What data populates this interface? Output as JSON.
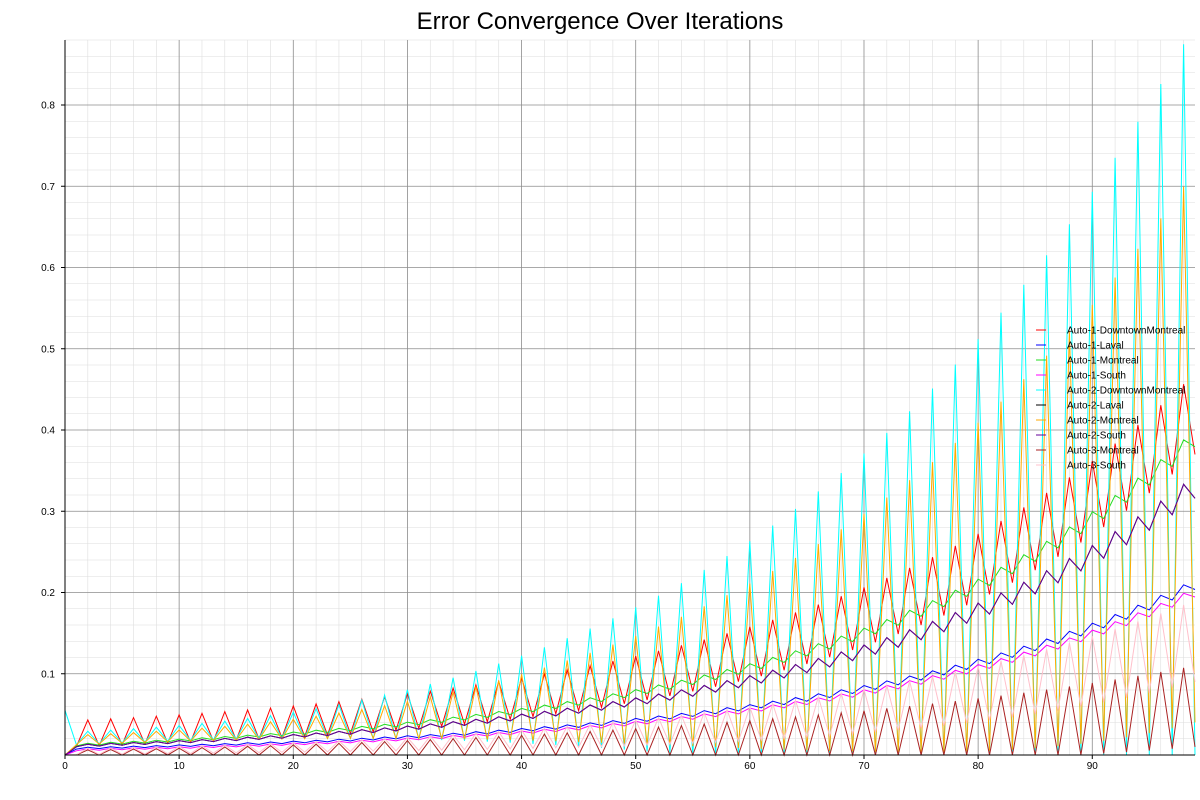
{
  "chart_data": {
    "type": "line",
    "title": "Error Convergence Over Iterations",
    "xlabel": "",
    "ylabel": "",
    "xlim": [
      0,
      99
    ],
    "ylim": [
      0,
      0.88
    ],
    "xticks": [
      0,
      10,
      20,
      30,
      40,
      50,
      60,
      70,
      80,
      90
    ],
    "yticks": [
      0.1,
      0.2,
      0.3,
      0.4,
      0.5,
      0.6,
      0.7,
      0.8
    ],
    "grid": true,
    "legend_position": "right",
    "series": [
      {
        "name": "Auto-1-DowntownMontreal",
        "color": "#ff0000",
        "params": {
          "mode": "zigzag",
          "start": 0.0,
          "a": 0.026,
          "s": 0.03,
          "e": 0.42,
          "ampStart": 0.016,
          "ampEnd": 0.05,
          "ampPow": 1.5
        }
      },
      {
        "name": "Auto-1-Laval",
        "color": "#0000ff",
        "params": {
          "mode": "smooth",
          "start": 0.0,
          "a": 0.008,
          "s": 0.015,
          "e": 0.21,
          "ampStart": 0.003,
          "ampEnd": 0.018,
          "ampPow": 2
        }
      },
      {
        "name": "Auto-1-Montreal",
        "color": "#22dd22",
        "params": {
          "mode": "smooth",
          "start": 0.0,
          "a": 0.012,
          "s": 0.02,
          "e": 0.39,
          "ampStart": 0.004,
          "ampEnd": 0.03,
          "ampPow": 2
        }
      },
      {
        "name": "Auto-1-South",
        "color": "#ff00ff",
        "params": {
          "mode": "smooth",
          "start": 0.0,
          "a": 0.006,
          "s": 0.012,
          "e": 0.2,
          "ampStart": 0.003,
          "ampEnd": 0.016,
          "ampPow": 2
        }
      },
      {
        "name": "Auto-2-DowntownMontreal",
        "color": "#00ffff",
        "params": {
          "mode": "zigzag",
          "start": 0.055,
          "a": 0.02,
          "s": 0.02,
          "e": 0.45,
          "ampStart": 0.008,
          "ampEnd": 0.45,
          "ampPow": 2.5
        }
      },
      {
        "name": "Auto-2-Laval",
        "color": "#000000",
        "params": {
          "mode": "smooth",
          "start": 0.0,
          "a": 0.011,
          "s": 0.017,
          "e": 0.33,
          "ampStart": 0.004,
          "ampEnd": 0.04,
          "ampPow": 2
        }
      },
      {
        "name": "Auto-2-Montreal",
        "color": "#ffaa00",
        "params": {
          "mode": "zigzag",
          "start": 0.0,
          "a": 0.018,
          "s": 0.018,
          "e": 0.38,
          "ampStart": 0.006,
          "ampEnd": 0.34,
          "ampPow": 2.5
        }
      },
      {
        "name": "Auto-2-South",
        "color": "#660099",
        "params": {
          "mode": "smooth",
          "start": 0.0,
          "a": 0.011,
          "s": 0.016,
          "e": 0.33,
          "ampStart": 0.004,
          "ampEnd": 0.04,
          "ampPow": 2
        }
      },
      {
        "name": "Auto-3-Montreal",
        "color": "#aa2222",
        "params": {
          "mode": "zigzag",
          "start": 0.0,
          "a": 0.002,
          "s": 0.005,
          "e": 0.06,
          "ampStart": 0.004,
          "ampEnd": 0.05,
          "ampPow": 1.5
        }
      },
      {
        "name": "Auto-3-South",
        "color": "#ffc0cb",
        "params": {
          "mode": "zigzag",
          "start": 0.0,
          "a": 0.004,
          "s": 0.009,
          "e": 0.14,
          "ampStart": 0.004,
          "ampEnd": 0.05,
          "ampPow": 2
        }
      }
    ]
  }
}
